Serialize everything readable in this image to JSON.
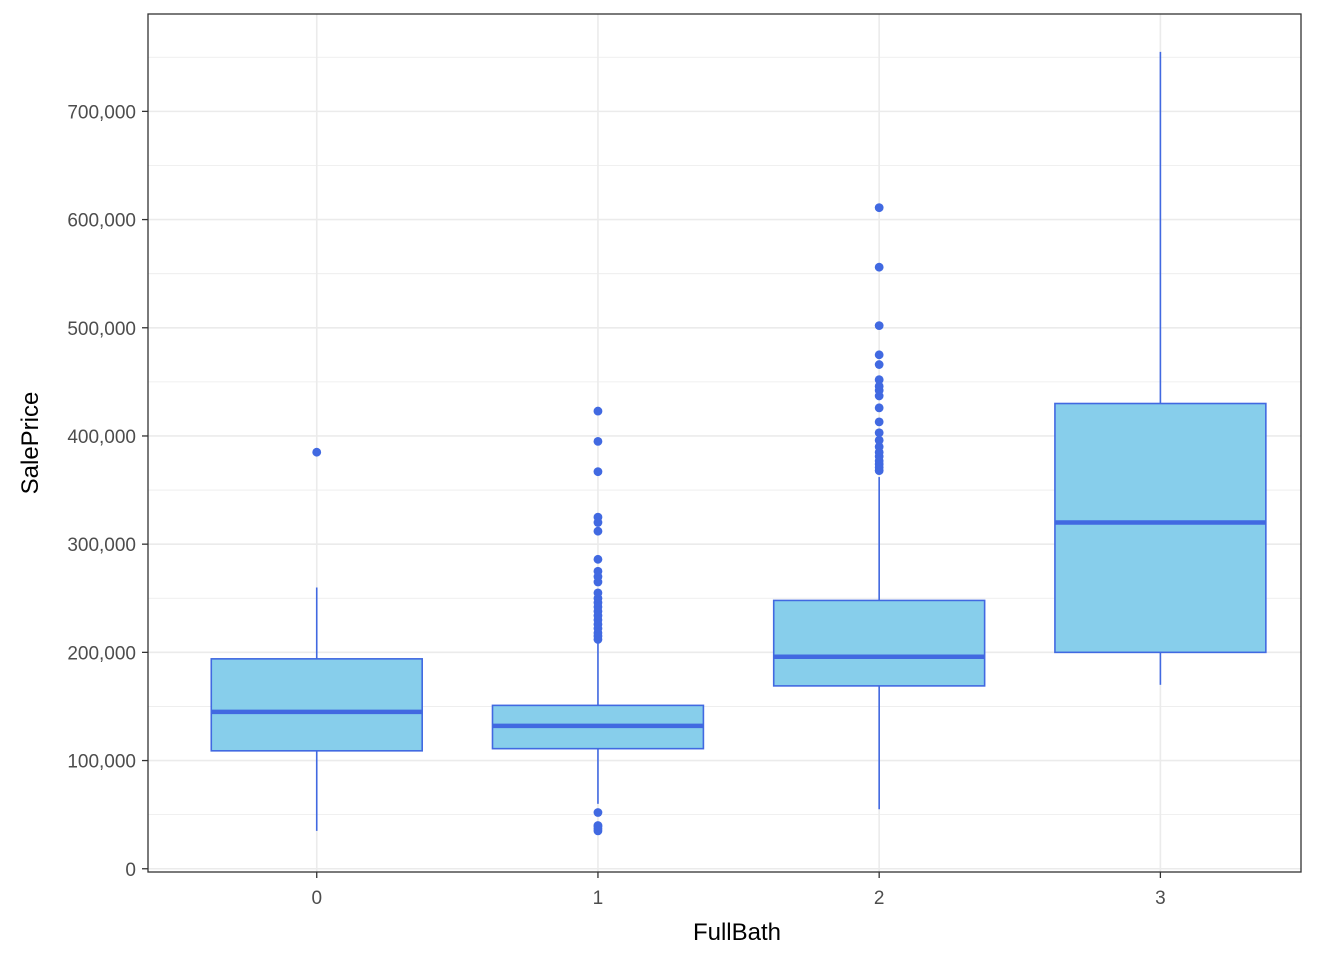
{
  "chart_data": {
    "type": "boxplot",
    "xlabel": "FullBath",
    "ylabel": "SalePrice",
    "categories": [
      "0",
      "1",
      "2",
      "3"
    ],
    "ylim": [
      -3000,
      790000
    ],
    "y_ticks": [
      0,
      100000,
      200000,
      300000,
      400000,
      500000,
      600000,
      700000
    ],
    "y_tick_labels": [
      "0",
      "100,000",
      "200,000",
      "300,000",
      "400,000",
      "500,000",
      "600,000",
      "700,000"
    ],
    "grid": true,
    "colors": {
      "fill": "#87ceeb",
      "stroke": "#4169e1",
      "grid": "#ebebeb",
      "panel_border": "#333333"
    },
    "boxes": [
      {
        "category": "0",
        "lower_whisker": 35000,
        "q1": 109000,
        "median": 145000,
        "q3": 194000,
        "upper_whisker": 260000,
        "outliers": [
          385000
        ]
      },
      {
        "category": "1",
        "lower_whisker": 60000,
        "q1": 111000,
        "median": 132000,
        "q3": 151000,
        "upper_whisker": 209000,
        "outliers": [
          35000,
          37000,
          39000,
          40000,
          52000,
          212000,
          215000,
          218000,
          222000,
          226000,
          230000,
          234000,
          238000,
          242000,
          246000,
          250000,
          255000,
          265000,
          270000,
          275000,
          286000,
          312000,
          320000,
          325000,
          367000,
          395000,
          423000
        ]
      },
      {
        "category": "2",
        "lower_whisker": 55000,
        "q1": 169000,
        "median": 196000,
        "q3": 248000,
        "upper_whisker": 362000,
        "outliers": [
          368000,
          371000,
          374000,
          377000,
          381000,
          385000,
          390000,
          396000,
          403000,
          413000,
          426000,
          437000,
          442000,
          446000,
          452000,
          466000,
          475000,
          502000,
          556000,
          611000
        ]
      },
      {
        "category": "3",
        "lower_whisker": 170000,
        "q1": 200000,
        "median": 320000,
        "q3": 430000,
        "upper_whisker": 755000,
        "outliers": []
      }
    ]
  }
}
